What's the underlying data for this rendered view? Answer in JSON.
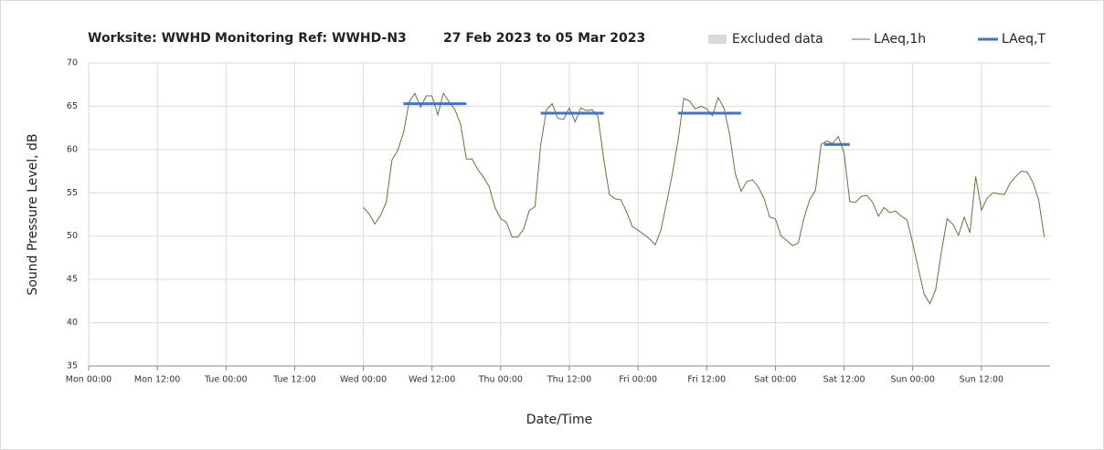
{
  "chart_data": {
    "type": "line",
    "title_parts": [
      "Worksite: WWHD",
      "Monitoring Ref: WWHD-N3",
      "27 Feb 2023 to 05 Mar 2023"
    ],
    "xlabel": "Date/Time",
    "ylabel": "Sound Pressure Level, dB",
    "xlim": [
      0,
      168
    ],
    "xticks": [
      {
        "value": 0,
        "label": "Mon 00:00"
      },
      {
        "value": 12,
        "label": "Mon 12:00"
      },
      {
        "value": 24,
        "label": "Tue 00:00"
      },
      {
        "value": 36,
        "label": "Tue 12:00"
      },
      {
        "value": 48,
        "label": "Wed 00:00"
      },
      {
        "value": 60,
        "label": "Wed 12:00"
      },
      {
        "value": 72,
        "label": "Thu 00:00"
      },
      {
        "value": 84,
        "label": "Thu 12:00"
      },
      {
        "value": 96,
        "label": "Fri 00:00"
      },
      {
        "value": 108,
        "label": "Fri 12:00"
      },
      {
        "value": 120,
        "label": "Sat 00:00"
      },
      {
        "value": 132,
        "label": "Sat 12:00"
      },
      {
        "value": 144,
        "label": "Sun 00:00"
      },
      {
        "value": 156,
        "label": "Sun 12:00"
      }
    ],
    "ylim": [
      35,
      70
    ],
    "yticks": [
      35,
      40,
      45,
      50,
      55,
      60,
      65,
      70
    ],
    "grid": true,
    "legend": "top-right",
    "series": [
      {
        "name": "Excluded data",
        "color": "#d9d9d9",
        "style": "area",
        "x": [],
        "values": []
      },
      {
        "name": "LAeq,1h",
        "color": "#5b7a3c",
        "style": "thin",
        "x": [
          48,
          49,
          50,
          51,
          52,
          53,
          54,
          55,
          56,
          57,
          58,
          59,
          60,
          61,
          62,
          63,
          64,
          65,
          66,
          67,
          68,
          69,
          70,
          71,
          72,
          73,
          74,
          75,
          76,
          77,
          78,
          79,
          80,
          81,
          82,
          83,
          84,
          85,
          86,
          87,
          88,
          89,
          90,
          91,
          92,
          93,
          94,
          95,
          96,
          97,
          98,
          99,
          100,
          101,
          102,
          103,
          104,
          105,
          106,
          107,
          108,
          109,
          110,
          111,
          112,
          113,
          114,
          115,
          116,
          117,
          118,
          119,
          120,
          121,
          122,
          123,
          124,
          125,
          126,
          127,
          128,
          129,
          130,
          131,
          132,
          133,
          134,
          135,
          136,
          137,
          138,
          139,
          140,
          141,
          142,
          143,
          144,
          145,
          146,
          147,
          148,
          149,
          150,
          151,
          152,
          153,
          154,
          155,
          156,
          157,
          158,
          159,
          160,
          161,
          162,
          163,
          164,
          165,
          166,
          167
        ],
        "values": [
          53.3,
          52.6,
          51.4,
          52.4,
          53.9,
          58.8,
          59.9,
          61.9,
          65.5,
          66.5,
          64.9,
          66.2,
          66.2,
          64,
          66.5,
          65.5,
          64.6,
          62.9,
          58.9,
          58.9,
          57.7,
          56.8,
          55.7,
          53.3,
          52,
          51.6,
          49.9,
          49.9,
          50.8,
          53,
          53.4,
          60.6,
          64.6,
          65.3,
          63.6,
          63.5,
          64.8,
          63.2,
          64.8,
          64.5,
          64.6,
          63.8,
          58.9,
          54.8,
          54.3,
          54.2,
          52.8,
          51.1,
          50.7,
          50.2,
          49.7,
          49,
          50.7,
          53.9,
          57.2,
          61.1,
          65.9,
          65.6,
          64.7,
          65,
          64.7,
          63.9,
          66,
          64.8,
          61.8,
          57.2,
          55.2,
          56.3,
          56.5,
          55.7,
          54.4,
          52.2,
          52,
          50,
          49.5,
          48.9,
          49.2,
          52.1,
          54.2,
          55.3,
          60.6,
          61,
          60.7,
          61.5,
          59.6,
          54,
          53.9,
          54.6,
          54.7,
          53.9,
          52.3,
          53.3,
          52.7,
          52.9,
          52.3,
          51.9,
          49.2,
          46.2,
          43.3,
          42.2,
          43.8,
          48.1,
          52,
          51.4,
          50.1,
          52.2,
          50.4,
          56.9,
          53,
          54.4,
          55,
          54.9,
          54.8,
          56.1,
          56.9,
          57.5,
          57.4,
          56.2,
          54.2,
          49.9
        ]
      },
      {
        "name": "LAeq,T",
        "color": "#4472c4",
        "style": "thick",
        "x": [
          55,
          66,
          66,
          79,
          90,
          90,
          103,
          114,
          114,
          128.5,
          133
        ],
        "values": [
          65.3,
          65.3,
          null,
          64.2,
          64.2,
          null,
          64.2,
          64.2,
          null,
          60.6,
          60.6
        ]
      }
    ]
  }
}
